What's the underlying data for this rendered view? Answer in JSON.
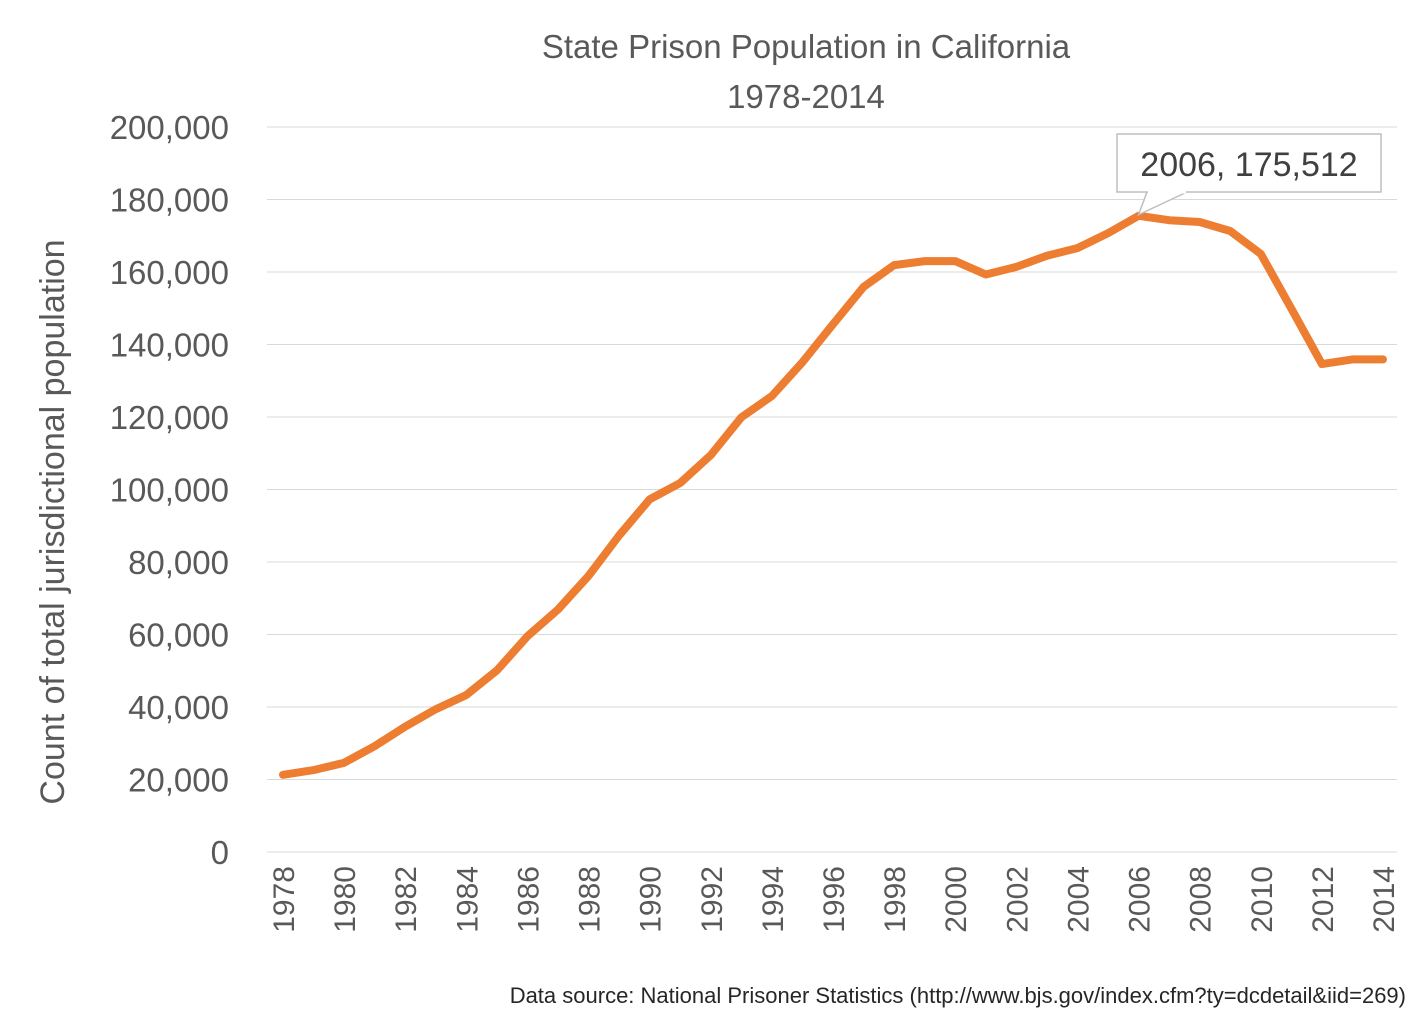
{
  "chart_data": {
    "type": "line",
    "title": "State Prison Population in California",
    "subtitle": "1978-2014",
    "ylabel": "Count of total jurisdictional population",
    "xlabel": "",
    "ylim": [
      0,
      200000
    ],
    "yticks": [
      0,
      20000,
      40000,
      60000,
      80000,
      100000,
      120000,
      140000,
      160000,
      180000,
      200000
    ],
    "ytick_labels": [
      "0",
      "20,000",
      "40,000",
      "60,000",
      "80,000",
      "100,000",
      "120,000",
      "140,000",
      "160,000",
      "180,000",
      "200,000"
    ],
    "xlim": [
      1978,
      2014
    ],
    "xtick_labels": [
      "1978",
      "1980",
      "1982",
      "1984",
      "1986",
      "1988",
      "1990",
      "1992",
      "1994",
      "1996",
      "1998",
      "2000",
      "2002",
      "2004",
      "2006",
      "2008",
      "2010",
      "2012",
      "2014"
    ],
    "grid": "horizontal",
    "line_color": "#ED7D31",
    "series": [
      {
        "x": [
          1978,
          1979,
          1980,
          1981,
          1982,
          1983,
          1984,
          1985,
          1986,
          1987,
          1988,
          1989,
          1990,
          1991,
          1992,
          1993,
          1994,
          1995,
          1996,
          1997,
          1998,
          1999,
          2000,
          2001,
          2002,
          2003,
          2004,
          2005,
          2006,
          2007,
          2008,
          2009,
          2010,
          2011,
          2012,
          2013,
          2014
        ],
        "values": [
          21300,
          22600,
          24600,
          29200,
          34600,
          39400,
          43300,
          50100,
          59500,
          66900,
          76200,
          87300,
          97300,
          101800,
          109500,
          119900,
          125800,
          135100,
          145600,
          155900,
          161900,
          163000,
          163000,
          159300,
          161400,
          164500,
          166600,
          170700,
          175512,
          174300,
          173800,
          171300,
          165000,
          149900,
          134600,
          135900,
          135900
        ]
      }
    ],
    "annotation": {
      "year": 2006,
      "value": 175512,
      "text": "2006,  175,512"
    },
    "source_note": "Data source:  National Prisoner Statistics (http://www.bjs.gov/index.cfm?ty=dcdetail&iid=269)"
  }
}
